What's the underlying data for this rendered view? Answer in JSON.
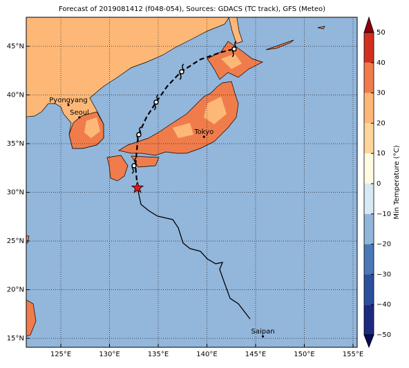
{
  "map": {
    "title": "Forecast of 2019081412 (f048-054), Sources: GDACS (TC track), GFS (Meteo)",
    "xlim": [
      121.45,
      155.43
    ],
    "ylim": [
      14.08,
      47.98
    ],
    "xticks": [
      {
        "value": 125,
        "label": "125°E"
      },
      {
        "value": 130,
        "label": "130°E"
      },
      {
        "value": 135,
        "label": "135°E"
      },
      {
        "value": 140,
        "label": "140°E"
      },
      {
        "value": 145,
        "label": "145°E"
      },
      {
        "value": 150,
        "label": "150°E"
      },
      {
        "value": 155,
        "label": "155°E"
      }
    ],
    "yticks": [
      {
        "value": 15,
        "label": "15°N"
      },
      {
        "value": 20,
        "label": "20°N"
      },
      {
        "value": 25,
        "label": "25°N"
      },
      {
        "value": 30,
        "label": "30°N"
      },
      {
        "value": 35,
        "label": "35°N"
      },
      {
        "value": 40,
        "label": "40°N"
      },
      {
        "value": 45,
        "label": "45°N"
      }
    ],
    "grid": true,
    "cities": [
      {
        "name": "Pyongyang",
        "lon": 125.78,
        "lat": 38.97
      },
      {
        "name": "Seoul",
        "lon": 126.91,
        "lat": 37.7
      },
      {
        "name": "Tokyo",
        "lon": 139.7,
        "lat": 35.7
      },
      {
        "name": "Saipan",
        "lon": 145.75,
        "lat": 15.2
      }
    ],
    "past_track": {
      "lon": [
        132.87,
        133.23,
        134.01,
        134.93,
        136.49,
        137.06,
        137.55,
        138.26,
        139.33,
        140.04,
        140.89,
        141.6,
        141.31,
        141.81,
        142.38,
        143.23,
        144.43
      ],
      "lat": [
        30.46,
        28.76,
        28.12,
        27.55,
        27.2,
        26.35,
        24.79,
        24.22,
        23.94,
        23.16,
        22.66,
        22.8,
        22.09,
        20.67,
        19.11,
        18.55,
        16.99
      ]
    },
    "forecast_track": {
      "lon": [
        132.87,
        132.66,
        132.94,
        133.79,
        134.79,
        135.92,
        137.34,
        139.33,
        141.6,
        142.8
      ],
      "lat": [
        30.46,
        32.73,
        35.85,
        37.7,
        39.26,
        40.89,
        42.38,
        43.65,
        44.43,
        44.72
      ]
    },
    "forecast_positions": {
      "lon": [
        132.52,
        133.01,
        134.79,
        137.41,
        142.8
      ],
      "lat": [
        32.73,
        35.92,
        39.26,
        42.38,
        44.72
      ]
    },
    "current_position": {
      "lon": 132.87,
      "lat": 30.46
    },
    "colorbar": {
      "label": "Min Temperature (°C)",
      "ticks": [
        {
          "value": -50,
          "label": "−50"
        },
        {
          "value": -40,
          "label": "−40"
        },
        {
          "value": -30,
          "label": "−30"
        },
        {
          "value": -20,
          "label": "−20"
        },
        {
          "value": -10,
          "label": "−10"
        },
        0,
        10,
        20,
        30,
        40,
        50
      ],
      "colors": [
        "#1c2a80",
        "#2c4f9e",
        "#4a79b5",
        "#92b6da",
        "#d7e9f3",
        "#fffbe0",
        "#fdd59c",
        "#fdb877",
        "#f07c4c",
        "#d2301f"
      ],
      "under_color": "#0b0b50",
      "over_color": "#8a0010"
    }
  }
}
